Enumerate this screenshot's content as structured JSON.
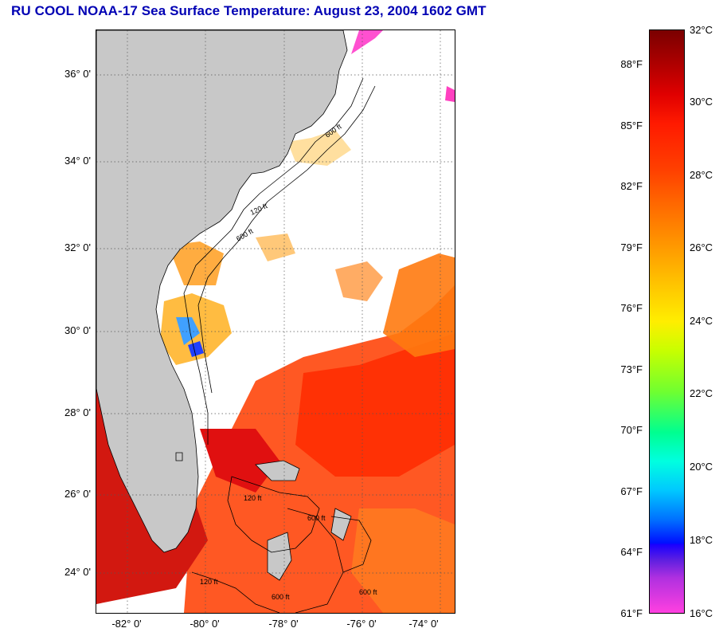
{
  "title": "RU COOL  NOAA-17  Sea Surface Temperature:  August 23, 2004 1602 GMT",
  "y_ticks": [
    "36° 0'",
    "34° 0'",
    "32° 0'",
    "30° 0'",
    "28° 0'",
    "26° 0'",
    "24° 0'"
  ],
  "x_ticks": [
    "-82° 0'",
    "-80° 0'",
    "-78° 0'",
    "-76° 0'",
    "-74° 0'"
  ],
  "contour_labels": [
    "600 ft",
    "120 ft",
    "600 ft",
    "120 ft",
    "600 ft",
    "120 ft",
    "600 ft",
    "600 ft"
  ],
  "colorbar": {
    "fahrenheit": [
      "88°F",
      "85°F",
      "82°F",
      "79°F",
      "76°F",
      "73°F",
      "70°F",
      "67°F",
      "64°F",
      "61°F"
    ],
    "celsius": [
      "32°C",
      "30°C",
      "28°C",
      "26°C",
      "24°C",
      "22°C",
      "20°C",
      "18°C",
      "16°C"
    ]
  },
  "colors": {
    "title": "#0000b4",
    "land": "#c8c8c8",
    "ocean_missing": "#ffffff"
  }
}
